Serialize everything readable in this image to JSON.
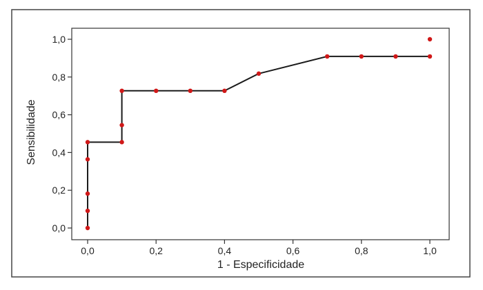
{
  "chart_data": {
    "type": "line",
    "title": "",
    "xlabel": "1 - Especificidade",
    "ylabel": "Sensibilidade",
    "xlim": [
      0,
      1
    ],
    "ylim": [
      0,
      1
    ],
    "x_ticks": [
      "0,0",
      "0,2",
      "0,4",
      "0,6",
      "0,8",
      "1,0"
    ],
    "y_ticks": [
      "0,0",
      "0,2",
      "0,4",
      "0,6",
      "0,8",
      "1,0"
    ],
    "grid": false,
    "legend": "none",
    "colors": {
      "line": "#1a1a1a",
      "marker": "#d01818",
      "frame": "#333333"
    },
    "series": [
      {
        "line_x": [
          0,
          0,
          0.1,
          0.1,
          0.2,
          0.3,
          0.4,
          0.5,
          0.7,
          0.8,
          0.9,
          1.0
        ],
        "line_y": [
          0,
          0.455,
          0.455,
          0.727,
          0.727,
          0.727,
          0.727,
          0.818,
          0.909,
          0.909,
          0.909,
          0.909
        ],
        "points": [
          [
            0,
            0
          ],
          [
            0,
            0.091
          ],
          [
            0,
            0.182
          ],
          [
            0,
            0.364
          ],
          [
            0,
            0.455
          ],
          [
            0.1,
            0.455
          ],
          [
            0.1,
            0.545
          ],
          [
            0.1,
            0.727
          ],
          [
            0.2,
            0.727
          ],
          [
            0.3,
            0.727
          ],
          [
            0.4,
            0.727
          ],
          [
            0.5,
            0.818
          ],
          [
            0.7,
            0.909
          ],
          [
            0.8,
            0.909
          ],
          [
            0.9,
            0.909
          ],
          [
            1.0,
            0.909
          ],
          [
            1.0,
            1.0
          ]
        ]
      }
    ]
  }
}
